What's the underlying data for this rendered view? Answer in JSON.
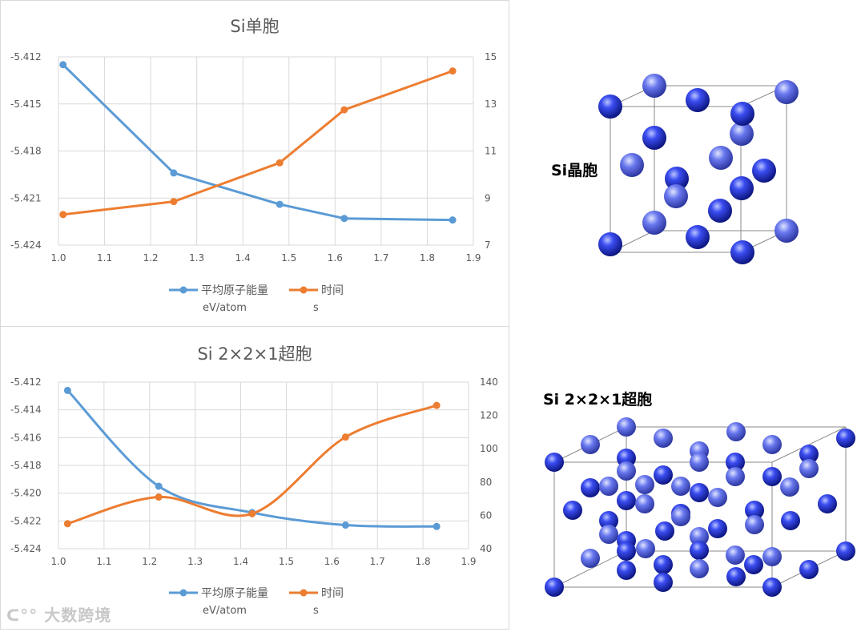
{
  "chart_data": [
    {
      "type": "line",
      "title": "Si单胞",
      "x": [
        1.01,
        1.25,
        1.48,
        1.62,
        1.855
      ],
      "xlim": [
        1.0,
        1.9
      ],
      "xticks": [
        "1.0",
        "1.1",
        "1.2",
        "1.3",
        "1.4",
        "1.5",
        "1.6",
        "1.7",
        "1.8",
        "1.9"
      ],
      "ylim_left": [
        -5.424,
        -5.412
      ],
      "yticks_left": [
        "-5.412",
        "-5.415",
        "-5.418",
        "-5.421",
        "-5.424"
      ],
      "ylim_right": [
        7,
        15
      ],
      "yticks_right": [
        "15",
        "13",
        "11",
        "9",
        "7"
      ],
      "grid": true,
      "legend_position": "bottom",
      "series": [
        {
          "name": "平均原子能量",
          "unit": "eV/atom",
          "axis": "left",
          "color": "#5b9bd5",
          "values": [
            -5.4125,
            -5.4194,
            -5.4214,
            -5.4223,
            -5.4224
          ]
        },
        {
          "name": "时间",
          "unit": "s",
          "axis": "right",
          "color": "#ed7d31",
          "values": [
            8.3,
            8.85,
            10.5,
            12.75,
            14.4
          ]
        }
      ]
    },
    {
      "type": "line",
      "title": "Si 2×2×1超胞",
      "x": [
        1.02,
        1.22,
        1.425,
        1.63,
        1.83
      ],
      "xlim": [
        1.0,
        1.9
      ],
      "xticks": [
        "1.0",
        "1.1",
        "1.2",
        "1.3",
        "1.4",
        "1.5",
        "1.6",
        "1.7",
        "1.8",
        "1.9"
      ],
      "ylim_left": [
        -5.424,
        -5.412
      ],
      "yticks_left": [
        "-5.412",
        "-5.414",
        "-5.416",
        "-5.418",
        "-5.420",
        "-5.422",
        "-5.424"
      ],
      "ylim_right": [
        40,
        140
      ],
      "yticks_right": [
        "140",
        "120",
        "100",
        "80",
        "60",
        "40"
      ],
      "grid": true,
      "legend_position": "bottom",
      "series": [
        {
          "name": "平均原子能量",
          "unit": "eV/atom",
          "axis": "left",
          "color": "#5b9bd5",
          "values": [
            -5.4126,
            -5.4195,
            -5.4214,
            -5.4223,
            -5.4224
          ]
        },
        {
          "name": "时间",
          "unit": "s",
          "axis": "right",
          "color": "#ed7d31",
          "values": [
            55,
            71,
            61,
            107,
            126
          ]
        }
      ]
    }
  ],
  "crystals": {
    "unit_cell_label": "Si晶胞",
    "supercell_label": "Si 2×2×1超胞",
    "atom_color": "#1f2fd6"
  },
  "watermark": "大数跨境"
}
